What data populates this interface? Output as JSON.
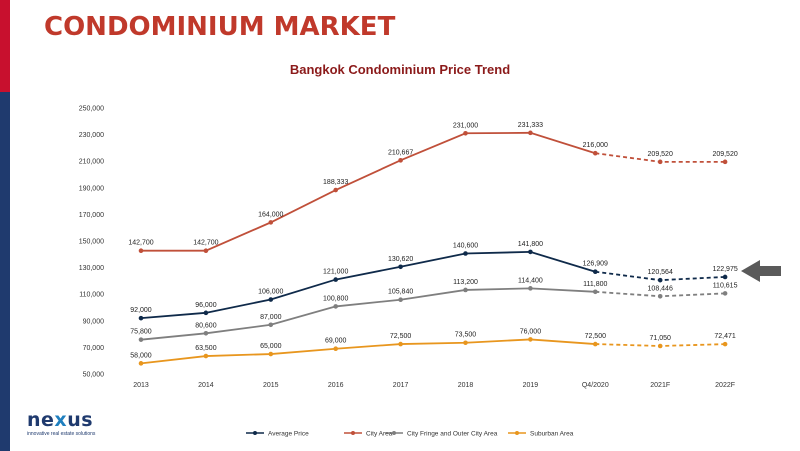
{
  "header": {
    "title": "CONDOMINIUM MARKET"
  },
  "logo": {
    "name_main": "ne",
    "name_accent": "x",
    "name_end": "us",
    "tagline": "innovative real estate solutions"
  },
  "colors": {
    "average_price": "#0f2a4a",
    "city_area": "#c0503a",
    "city_fringe": "#7f7f7f",
    "suburban": "#e8961e",
    "axis_text": "#333333",
    "gridline": "#d9d9d9",
    "arrow": "#5a5a5a"
  },
  "chart_data": {
    "type": "line",
    "title": "Bangkok Condominium Price Trend",
    "xlabel": "",
    "ylabel": "",
    "categories": [
      "2013",
      "2014",
      "2015",
      "2016",
      "2017",
      "2018",
      "2019",
      "Q4/2020",
      "2021F",
      "2022F"
    ],
    "ylim": [
      50000,
      250000
    ],
    "yticks": [
      "250,000",
      "230,000",
      "210,000",
      "190,000",
      "170,000",
      "150,000",
      "130,000",
      "110,000",
      "90,000",
      "70,000",
      "50,000"
    ],
    "ytick_values": [
      250000,
      230000,
      210000,
      190000,
      170000,
      150000,
      130000,
      110000,
      90000,
      70000,
      50000
    ],
    "grid": false,
    "legend_position": "bottom",
    "forecast_from_index": 7,
    "series": [
      {
        "name": "Average Price",
        "key": "average_price",
        "values": [
          92000,
          96000,
          106000,
          121000,
          130620,
          140600,
          141800,
          126909,
          120564,
          122975
        ],
        "labels": [
          "92,000",
          "96,000",
          "106,000",
          "121,000",
          "130,620",
          "140,600",
          "141,800",
          "126,909",
          "120,564",
          "122,975"
        ]
      },
      {
        "name": "City Area",
        "key": "city_area",
        "values": [
          142700,
          142700,
          164000,
          188333,
          210667,
          231000,
          231333,
          216000,
          209520,
          209520
        ],
        "labels": [
          "142,700",
          "142,700",
          "164,000",
          "188,333",
          "210,667",
          "231,000",
          "231,333",
          "216,000",
          "209,520",
          "209,520"
        ]
      },
      {
        "name": "City Fringe and Outer City Area",
        "key": "city_fringe",
        "values": [
          75800,
          80600,
          87000,
          100800,
          105840,
          113200,
          114400,
          111800,
          108446,
          110615
        ],
        "labels": [
          "75,800",
          "80,600",
          "87,000",
          "100,800",
          "105,840",
          "113,200",
          "114,400",
          "111,800",
          "108,446",
          "110,615"
        ]
      },
      {
        "name": "Suburban Area",
        "key": "suburban",
        "values": [
          58000,
          63500,
          65000,
          69000,
          72500,
          73500,
          76000,
          72500,
          71050,
          72471
        ],
        "labels": [
          "58,000",
          "63,500",
          "65,000",
          "69,000",
          "72,500",
          "73,500",
          "76,000",
          "72,500",
          "71,050",
          "72,471"
        ]
      }
    ]
  }
}
